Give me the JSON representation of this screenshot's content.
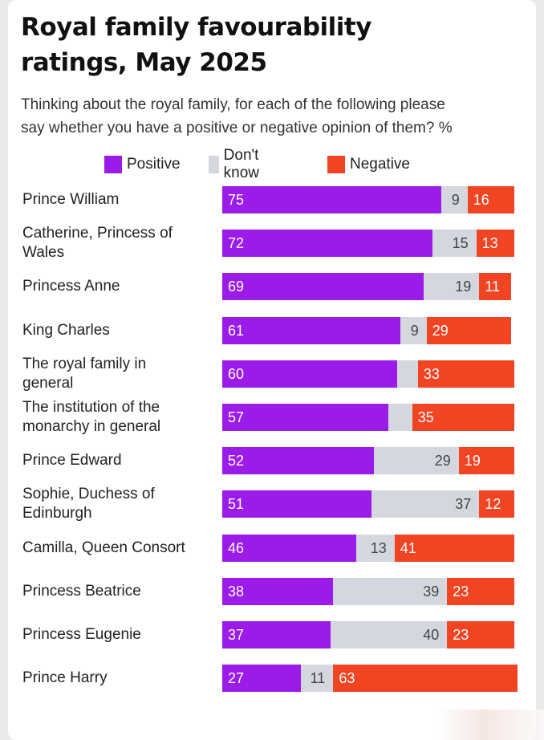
{
  "header": {
    "title_line1": "Royal family favourability",
    "title_line2": "ratings, May 2025",
    "subtitle_line1": "Thinking about the royal family, for each of the following please",
    "subtitle_line2": "say whether you have a positive or negative opinion of them? %"
  },
  "colors": {
    "positive": "#9b1ce8",
    "dont_know": "#d4d7dd",
    "negative": "#f04423"
  },
  "chart_data": {
    "type": "bar",
    "orientation": "horizontal",
    "stacked": true,
    "title": "Royal family favourability ratings, May 2025",
    "subtitle": "Thinking about the royal family, for each of the following please say whether you have a positive or negative opinion of them? %",
    "xlim": [
      0,
      100
    ],
    "legend": [
      "Positive",
      "Don't know",
      "Negative"
    ],
    "legend_position": "top",
    "categories": [
      "Prince William",
      "Catherine, Princess of Wales",
      "Princess Anne",
      "King Charles",
      "The royal family in general",
      "The institution of the monarchy in general",
      "Prince Edward",
      "Sophie, Duchess of Edinburgh",
      "Camilla, Queen Consort",
      "Princess Beatrice",
      "Princess Eugenie",
      "Prince Harry"
    ],
    "series": [
      {
        "name": "Positive",
        "values": [
          75,
          72,
          69,
          61,
          60,
          57,
          52,
          51,
          46,
          38,
          37,
          27
        ]
      },
      {
        "name": "Don't know",
        "values": [
          9,
          15,
          19,
          9,
          7,
          8,
          29,
          37,
          13,
          39,
          40,
          11
        ]
      },
      {
        "name": "Negative",
        "values": [
          16,
          13,
          11,
          29,
          33,
          35,
          19,
          12,
          41,
          23,
          23,
          63
        ]
      }
    ],
    "value_labels": [
      [
        "75",
        "9",
        "16"
      ],
      [
        "72",
        "15",
        "13"
      ],
      [
        "69",
        "19",
        "11"
      ],
      [
        "61",
        "9",
        "29"
      ],
      [
        "60",
        "",
        "33"
      ],
      [
        "57",
        "",
        "35"
      ],
      [
        "52",
        "29",
        "19"
      ],
      [
        "51",
        "37",
        "12"
      ],
      [
        "46",
        "13",
        "41"
      ],
      [
        "38",
        "39",
        "23"
      ],
      [
        "37",
        "40",
        "23"
      ],
      [
        "27",
        "11",
        "63"
      ]
    ],
    "row_labels": [
      [
        "Prince William"
      ],
      [
        "Catherine, Princess of",
        "Wales"
      ],
      [
        "Princess Anne"
      ],
      [
        "King Charles"
      ],
      [
        "The royal family in",
        "general"
      ],
      [
        "The institution of the",
        "monarchy in general"
      ],
      [
        "Prince Edward"
      ],
      [
        "Sophie, Duchess of",
        "Edinburgh"
      ],
      [
        "Camilla, Queen Consort"
      ],
      [
        "Princess Beatrice"
      ],
      [
        "Princess Eugenie"
      ],
      [
        "Prince Harry"
      ]
    ]
  }
}
